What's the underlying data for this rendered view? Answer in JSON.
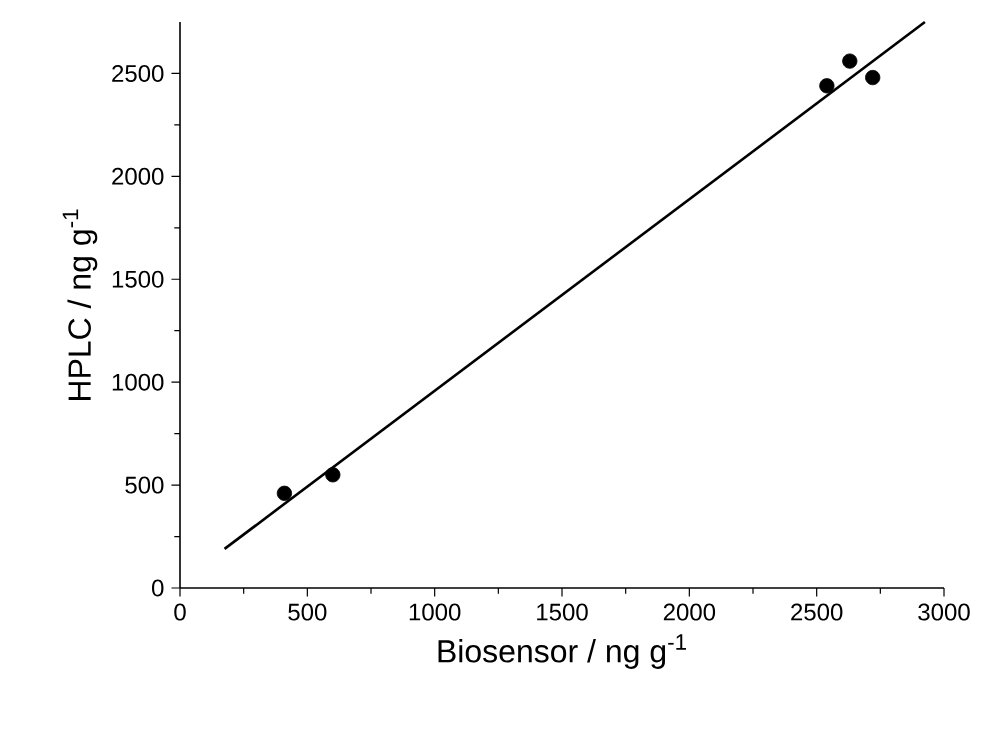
{
  "chart_data": {
    "type": "scatter",
    "xlabel": "Biosensor / ng g$^{-1}$",
    "ylabel": "HPLC / ng g$^{-1}$",
    "xlim": [
      0,
      3000
    ],
    "ylim": [
      0,
      2750
    ],
    "xticks": [
      0,
      500,
      1000,
      1500,
      2000,
      2500,
      3000
    ],
    "yticks": [
      0,
      500,
      1000,
      1500,
      2000,
      2500
    ],
    "series": [
      {
        "color": "#000000",
        "marker": "circle",
        "x": [
          410,
          600,
          2540,
          2630,
          2720
        ],
        "values": [
          460,
          550,
          2440,
          2560,
          2480
        ]
      },
      {
        "type": "line",
        "color": "#000000",
        "marker": "none",
        "x": [
          175,
          2925
        ],
        "values": [
          190,
          2750
        ]
      }
    ]
  }
}
